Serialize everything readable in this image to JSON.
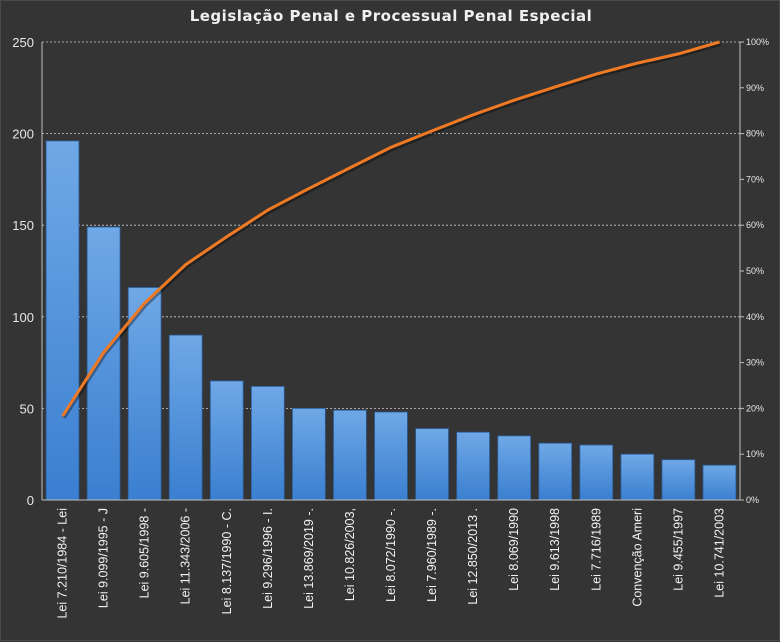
{
  "chart_data": {
    "type": "bar",
    "title": "Legislação  Penal e Processual  Penal Especial",
    "categories": [
      "Lei 7.210/1984 - Lei",
      "Lei 9.099/1995 - J",
      "Lei 9.605/1998 -",
      "Lei 11.343/2006 -",
      "Lei 8.137/1990 - C.",
      "Lei 9.296/1996 - I.",
      "Lei 13.869/2019 -.",
      "Lei 10.826/2003,",
      "Lei 8.072/1990 -.",
      "Lei 7.960/1989 -.",
      "Lei 12.850/2013 .",
      "Lei 8.069/1990",
      "Lei 9.613/1998",
      "Lei 7.716/1989",
      "Convenção Ameri",
      "Lei 9.455/1997",
      "Lei 10.741/2003"
    ],
    "values": [
      196,
      149,
      116,
      90,
      65,
      62,
      50,
      49,
      48,
      39,
      37,
      35,
      31,
      30,
      25,
      22,
      19
    ],
    "cumulative_percent": [
      18.3,
      32.2,
      43.0,
      51.4,
      57.5,
      63.3,
      68.0,
      72.5,
      77.0,
      80.6,
      84.1,
      87.3,
      90.2,
      93.0,
      95.4,
      97.4,
      100.0
    ],
    "ylim": [
      0,
      250
    ],
    "y_ticks": [
      "0",
      "50",
      "100",
      "150",
      "200",
      "250"
    ],
    "y2lim": [
      0,
      100
    ],
    "y2_ticks": [
      "0%",
      "10%",
      "20%",
      "30%",
      "40%",
      "50%",
      "60%",
      "70%",
      "80%",
      "90%",
      "100%"
    ],
    "grid": true,
    "colors": {
      "background": "#343434",
      "bar_top": "#6fa8e6",
      "bar_bottom": "#3a7fd0",
      "bar_edge": "#2c5f9e",
      "line": "#f07a24",
      "grid": "#cfcfcf",
      "text": "#f0f0f0"
    }
  }
}
